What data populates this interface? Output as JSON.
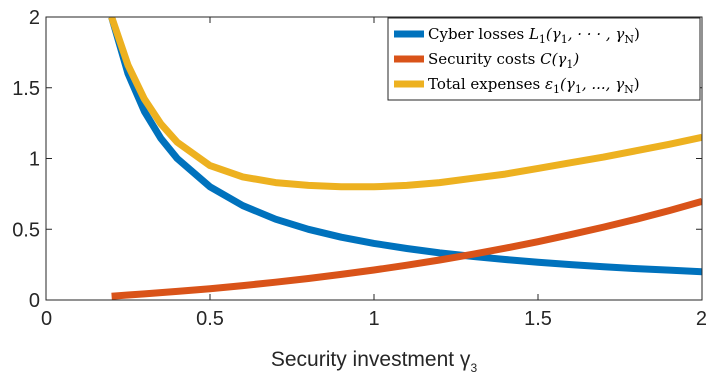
{
  "chart_data": {
    "type": "line",
    "title": "",
    "xlabel": "Security investment γ",
    "xlabel_subscript": "3",
    "ylabel": "",
    "xlim": [
      0,
      2
    ],
    "ylim": [
      0,
      2
    ],
    "xticks": [
      0,
      0.5,
      1,
      1.5,
      2
    ],
    "xtick_labels": [
      "0",
      "0.5",
      "1",
      "1.5",
      "2"
    ],
    "yticks": [
      0,
      0.5,
      1,
      1.5,
      2
    ],
    "ytick_labels": [
      "0",
      "0.5",
      "1",
      "1.5",
      "2"
    ],
    "grid": false,
    "legend_position": "top-right",
    "x": [
      0.2,
      0.25,
      0.3,
      0.35,
      0.4,
      0.5,
      0.6,
      0.7,
      0.8,
      0.9,
      1.0,
      1.1,
      1.2,
      1.3,
      1.4,
      1.5,
      1.6,
      1.7,
      1.8,
      1.9,
      2.0
    ],
    "series": [
      {
        "name": "Cyber losses",
        "legend_parts": [
          "Cyber losses ",
          "L",
          "1",
          "(γ",
          "1",
          ", · · · , γ",
          "N",
          ")"
        ],
        "color": "#0072BD",
        "values": [
          2.0,
          1.6,
          1.333,
          1.143,
          1.0,
          0.8,
          0.667,
          0.571,
          0.5,
          0.444,
          0.4,
          0.364,
          0.333,
          0.308,
          0.286,
          0.267,
          0.25,
          0.235,
          0.222,
          0.211,
          0.2
        ]
      },
      {
        "name": "Security costs",
        "legend_parts": [
          "Security costs ",
          "C",
          "",
          "(γ",
          "1",
          ")",
          "",
          ""
        ],
        "color": "#D95319",
        "values": [
          0.027,
          0.035,
          0.043,
          0.052,
          0.061,
          0.08,
          0.102,
          0.126,
          0.152,
          0.181,
          0.212,
          0.246,
          0.283,
          0.323,
          0.366,
          0.412,
          0.462,
          0.515,
          0.571,
          0.632,
          0.697
        ]
      },
      {
        "name": "Total expenses",
        "legend_parts": [
          "Total expenses ",
          "ε",
          "1",
          "(γ",
          "1",
          ", ..., γ",
          "N",
          ")"
        ],
        "color": "#EDB120",
        "values": [
          2.0,
          1.66,
          1.42,
          1.245,
          1.115,
          0.95,
          0.87,
          0.83,
          0.81,
          0.8,
          0.8,
          0.81,
          0.83,
          0.86,
          0.89,
          0.93,
          0.97,
          1.01,
          1.055,
          1.1,
          1.15
        ]
      }
    ]
  }
}
